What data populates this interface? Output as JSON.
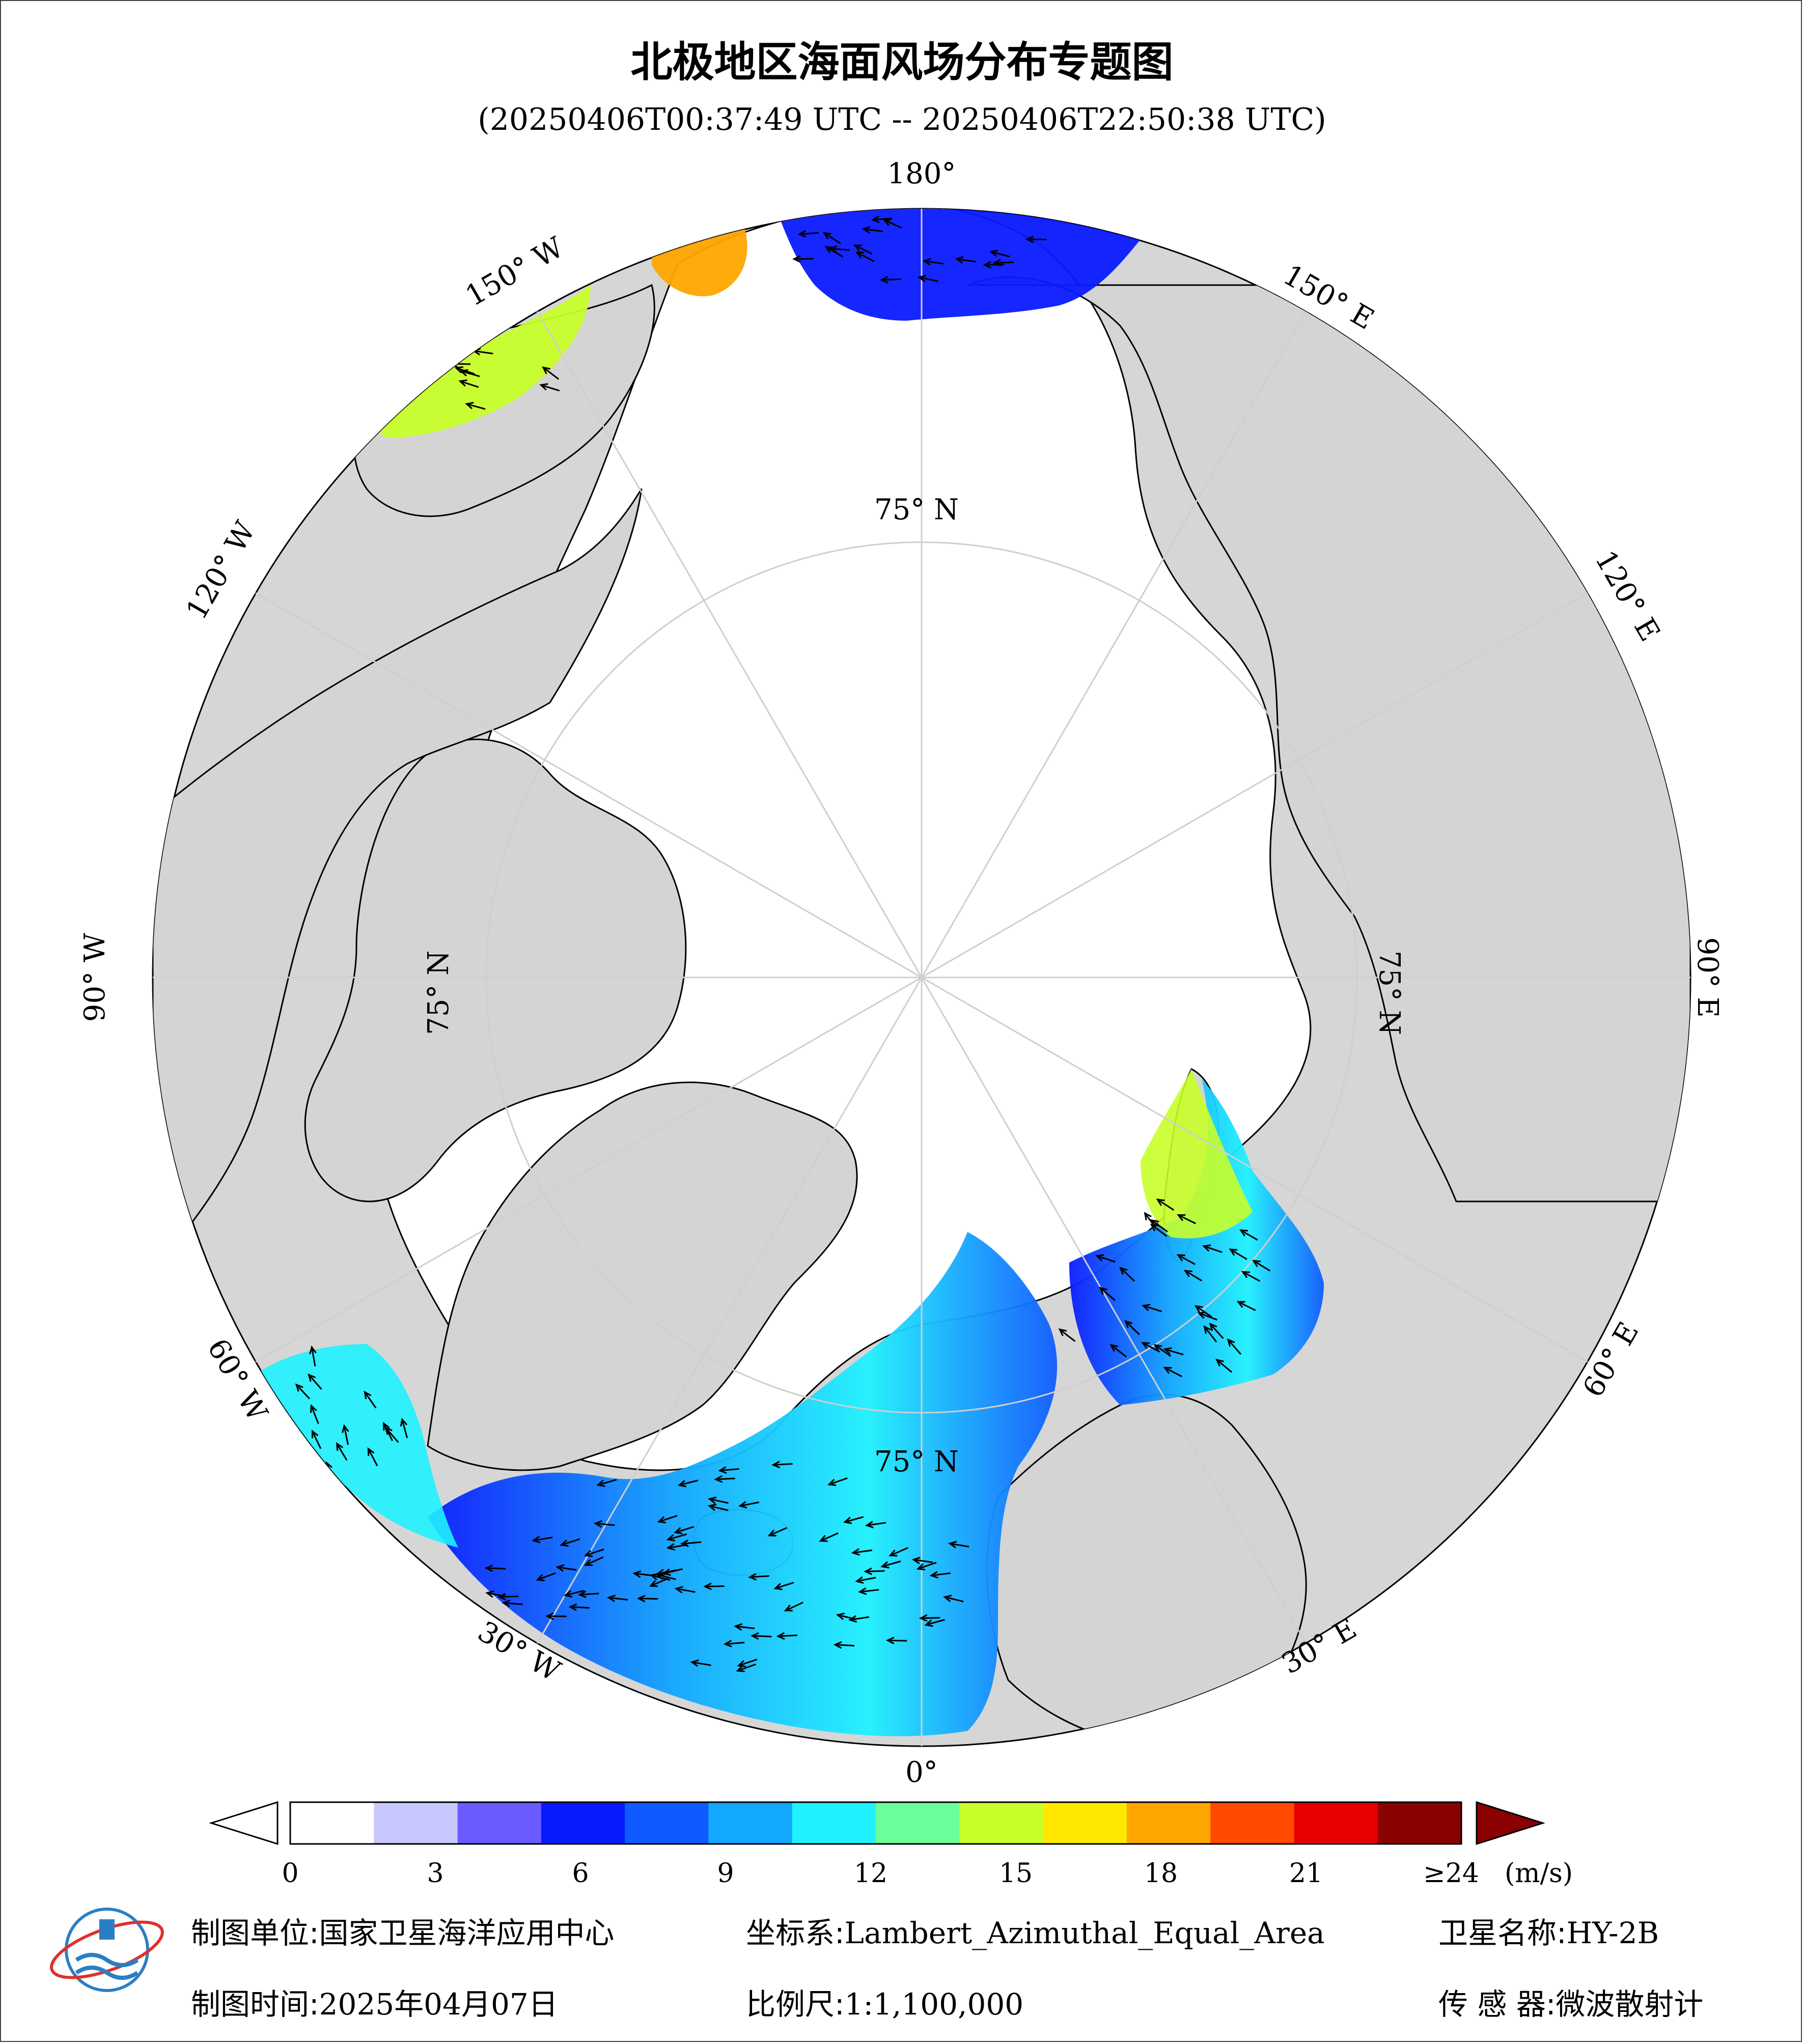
{
  "title": "北极地区海面风场分布专题图",
  "time_range": "(20250406T00:37:49 UTC -- 20250406T22:50:38 UTC)",
  "map": {
    "projection_center": "North Pole",
    "graticule_labels": {
      "lon_180": "180°",
      "lon_150w": "150° W",
      "lon_120w": "120° W",
      "lon_90w": "90° W",
      "lon_60w": "60° W",
      "lon_30w": "30° W",
      "lon_0": "0°",
      "lon_30e": "30° E",
      "lon_60e": "60° E",
      "lon_90e": "90° E",
      "lon_120e": "120° E",
      "lon_150e": "150° E",
      "lat_75_top": "75° N",
      "lat_75_left": "75° N",
      "lat_75_right": "75° N",
      "lat_75_bottom": "75° N"
    },
    "colors": {
      "ocean_background": "#d6d6d6",
      "land": "#d4d4d4",
      "ice_ocean": "#ffffff",
      "graticule": "#cfcfcf"
    }
  },
  "colorbar": {
    "unit": "(m/s)",
    "ticks": [
      "0",
      "3",
      "6",
      "9",
      "12",
      "15",
      "18",
      "21",
      "≥24"
    ],
    "tick_values": [
      0,
      3,
      6,
      9,
      12,
      15,
      18,
      21,
      24
    ],
    "colors": [
      "#ffffff",
      "#c8c8ff",
      "#6a5cff",
      "#0a1aff",
      "#0f5bff",
      "#12a8ff",
      "#1ff2ff",
      "#6cff9a",
      "#c8ff2a",
      "#ffe800",
      "#ffa500",
      "#ff4a00",
      "#e80000",
      "#8b0000"
    ],
    "under_color": "#ffffff",
    "over_color": "#8b0000"
  },
  "footer": {
    "producer_label": "制图单位:",
    "producer_value": "国家卫星海洋应用中心",
    "coord_label": "坐标系:",
    "coord_value": "Lambert_Azimuthal_Equal_Area",
    "satellite_label": "卫星名称:",
    "satellite_value": "HY-2B",
    "date_label": "制图时间:",
    "date_value": "2025年04月07日",
    "scale_label": "比例尺:",
    "scale_value": "1:1,100,000",
    "sensor_label": "传 感 器:",
    "sensor_value": "微波散射计"
  },
  "logo_icon": "nsoas-logo-icon"
}
